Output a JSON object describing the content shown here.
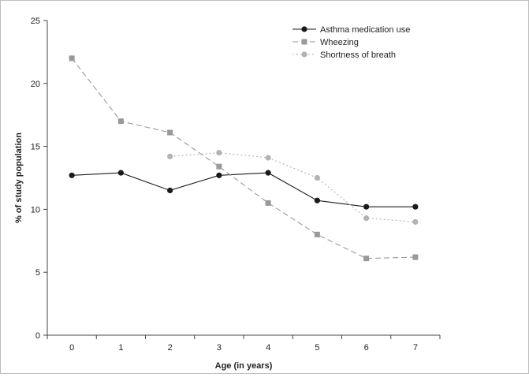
{
  "chart_data": {
    "type": "line",
    "title": "",
    "xlabel": "Age (in years)",
    "ylabel": "% of study population",
    "x": [
      0,
      1,
      2,
      3,
      4,
      5,
      6,
      7
    ],
    "x_tick_labels": [
      "0",
      "1",
      "2",
      "3",
      "4",
      "5",
      "6",
      "7"
    ],
    "y_tick_labels": [
      "0",
      "5",
      "10",
      "15",
      "20",
      "25"
    ],
    "xlim": [
      -0.5,
      7.5
    ],
    "ylim": [
      0,
      25
    ],
    "yticks": [
      0,
      5,
      10,
      15,
      20,
      25
    ],
    "grid": false,
    "legend_position": "top-right",
    "series": [
      {
        "name": "Asthma medication use",
        "values": [
          12.7,
          12.9,
          11.5,
          12.7,
          12.9,
          10.7,
          10.2,
          10.2
        ],
        "color": "#1a1a1a",
        "line_style": "solid",
        "marker": "circle"
      },
      {
        "name": "Wheezing",
        "values": [
          22.0,
          17.0,
          16.1,
          13.4,
          10.5,
          8.0,
          6.1,
          6.2
        ],
        "color": "#999999",
        "line_style": "dashed",
        "marker": "square"
      },
      {
        "name": "Shortness of breath",
        "values": [
          null,
          null,
          14.2,
          14.5,
          14.1,
          12.5,
          9.3,
          9.0
        ],
        "color": "#b3b3b3",
        "line_style": "dotted",
        "marker": "circle"
      }
    ]
  }
}
